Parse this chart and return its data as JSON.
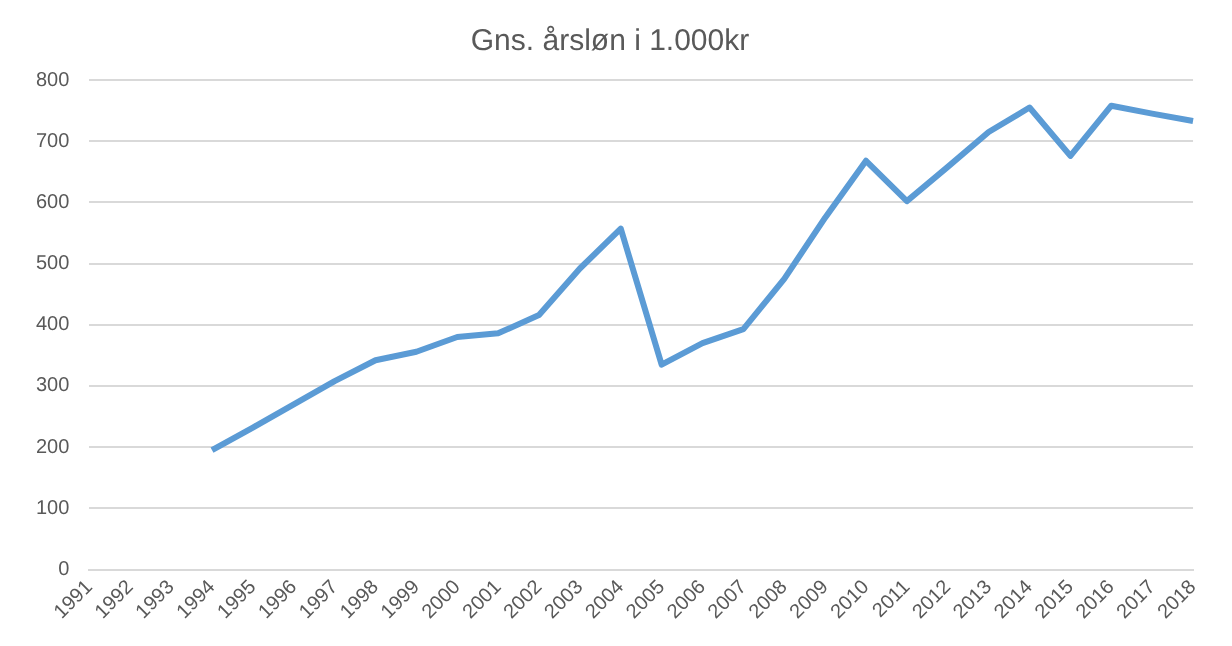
{
  "chart_data": {
    "type": "line",
    "title": "Gns. årsløn i 1.000kr",
    "categories": [
      "1991",
      "1992",
      "1993",
      "1994",
      "1995",
      "1996",
      "1997",
      "1998",
      "1999",
      "2000",
      "2001",
      "2002",
      "2003",
      "2004",
      "2005",
      "2006",
      "2007",
      "2008",
      "2009",
      "2010",
      "2011",
      "2012",
      "2013",
      "2014",
      "2015",
      "2016",
      "2017",
      "2018"
    ],
    "series": [
      {
        "color": "#5b9bd5",
        "values": [
          null,
          null,
          null,
          195,
          232,
          270,
          308,
          342,
          356,
          380,
          386,
          416,
          492,
          557,
          335,
          370,
          393,
          475,
          575,
          668,
          602,
          658,
          715,
          755,
          676,
          758,
          745,
          733
        ]
      }
    ],
    "ylim": [
      0,
      800
    ],
    "yticks": [
      0,
      100,
      200,
      300,
      400,
      500,
      600,
      700,
      800
    ],
    "grid": "y",
    "legend": false,
    "marker": "none",
    "line_style": "solid"
  }
}
